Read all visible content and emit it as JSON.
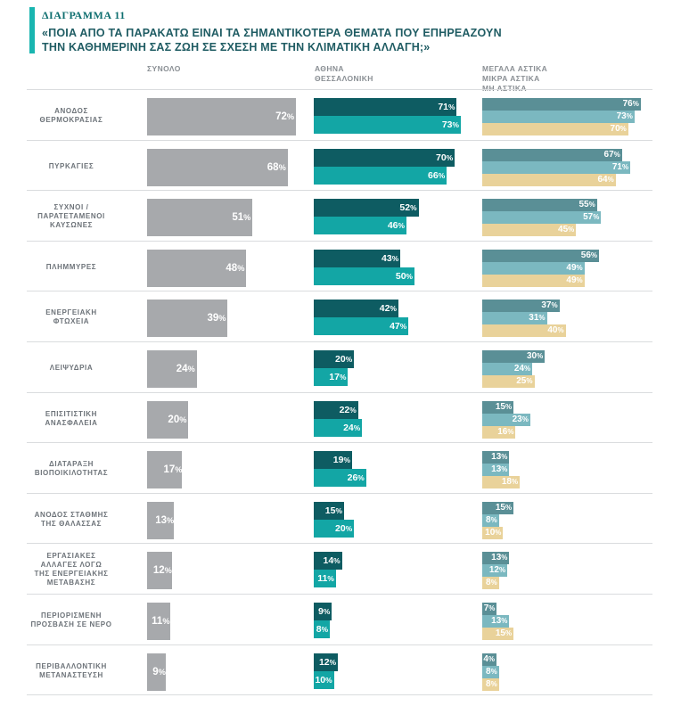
{
  "header": {
    "diagram_label": "ΔΙΑΓΡΑΜΜΑ 11",
    "title_line1": "«ΠΟΙΑ ΑΠΟ ΤΑ ΠΑΡΑΚΑΤΩ ΕΙΝΑΙ ΤΑ ΣΗΜΑΝΤΙΚΟΤΕΡΑ ΘΕΜΑΤΑ ΠΟΥ ΕΠΗΡΕΑΖΟΥΝ",
    "title_line2": "ΤΗΝ ΚΑΘΗΜΕΡΙΝΗ ΣΑΣ ΖΩΗ ΣΕ ΣΧΕΣΗ ΜΕ ΤΗΝ ΚΛΙΜΑΤΙΚΗ ΑΛΛΑΓΗ;»",
    "accent_color": "#19b5b0"
  },
  "columns": {
    "total": [
      "ΣΥΝΟΛΟ"
    ],
    "athens": [
      "ΑΘΗΝΑ",
      "ΘΕΣΣΑΛΟΝΙΚΗ"
    ],
    "urban": [
      "ΜΕΓΑΛΑ ΑΣΤΙΚΑ",
      "ΜΙΚΡΑ ΑΣΤΙΚΑ",
      "ΜΗ ΑΣΤΙΚΑ"
    ]
  },
  "colors": {
    "total": "#a7a9ac",
    "athens": "#0e5c62",
    "thessaloniki": "#13a6a5",
    "large_urban": "#5a8f96",
    "small_urban": "#7bb8c0",
    "non_urban": "#e9d29a"
  },
  "chart_data": {
    "type": "bar",
    "unit": "%",
    "categories": [
      [
        "ΑΝΟΔΟΣ",
        "ΘΕΡΜΟΚΡΑΣΙΑΣ"
      ],
      [
        "ΠΥΡΚΑΓΙΕΣ"
      ],
      [
        "ΣΥΧΝΟΙ /",
        "ΠΑΡΑΤΕΤΑΜΕΝΟΙ",
        "ΚΑΥΣΩΝΕΣ"
      ],
      [
        "ΠΛΗΜΜΥΡΕΣ"
      ],
      [
        "ΕΝΕΡΓΕΙΑΚΗ",
        "ΦΤΩΧΕΙΑ"
      ],
      [
        "ΛΕΙΨΥΔΡΙΑ"
      ],
      [
        "ΕΠΙΣΙΤΙΣΤΙΚΗ",
        "ΑΝΑΣΦΑΛΕΙΑ"
      ],
      [
        "ΔΙΑΤΑΡΑΞΗ",
        "ΒΙΟΠΟΙΚΙΛΟΤΗΤΑΣ"
      ],
      [
        "ΑΝΟΔΟΣ ΣΤΑΘΜΗΣ",
        "ΤΗΣ ΘΑΛΑΣΣΑΣ"
      ],
      [
        "ΕΡΓΑΣΙΑΚΕΣ",
        "ΑΛΛΑΓΕΣ ΛΟΓΩ",
        "ΤΗΣ ΕΝΕΡΓΕΙΑΚΗΣ",
        "ΜΕΤΑΒΑΣΗΣ"
      ],
      [
        "ΠΕΡΙΟΡΙΣΜΕΝΗ",
        "ΠΡΟΣΒΑΣΗ ΣΕ ΝΕΡΟ"
      ],
      [
        "ΠΕΡΙΒΑΛΛΟΝΤΙΚΗ",
        "ΜΕΤΑΝΑΣΤΕΥΣΗ"
      ]
    ],
    "series": [
      {
        "values": [
          72,
          68,
          51,
          48,
          39,
          24,
          20,
          17,
          13,
          12,
          11,
          9
        ]
      },
      {
        "values": [
          71,
          70,
          52,
          43,
          42,
          20,
          22,
          19,
          15,
          14,
          9,
          12
        ]
      },
      {
        "values": [
          73,
          66,
          46,
          50,
          47,
          17,
          24,
          26,
          20,
          11,
          8,
          10
        ]
      },
      {
        "values": [
          76,
          67,
          55,
          56,
          37,
          30,
          15,
          13,
          15,
          13,
          7,
          4
        ]
      },
      {
        "values": [
          73,
          71,
          57,
          49,
          31,
          24,
          23,
          13,
          8,
          12,
          13,
          8
        ]
      },
      {
        "values": [
          70,
          64,
          45,
          49,
          40,
          25,
          16,
          18,
          10,
          8,
          15,
          8
        ]
      }
    ],
    "ylim": [
      0,
      100
    ],
    "grid": false
  }
}
